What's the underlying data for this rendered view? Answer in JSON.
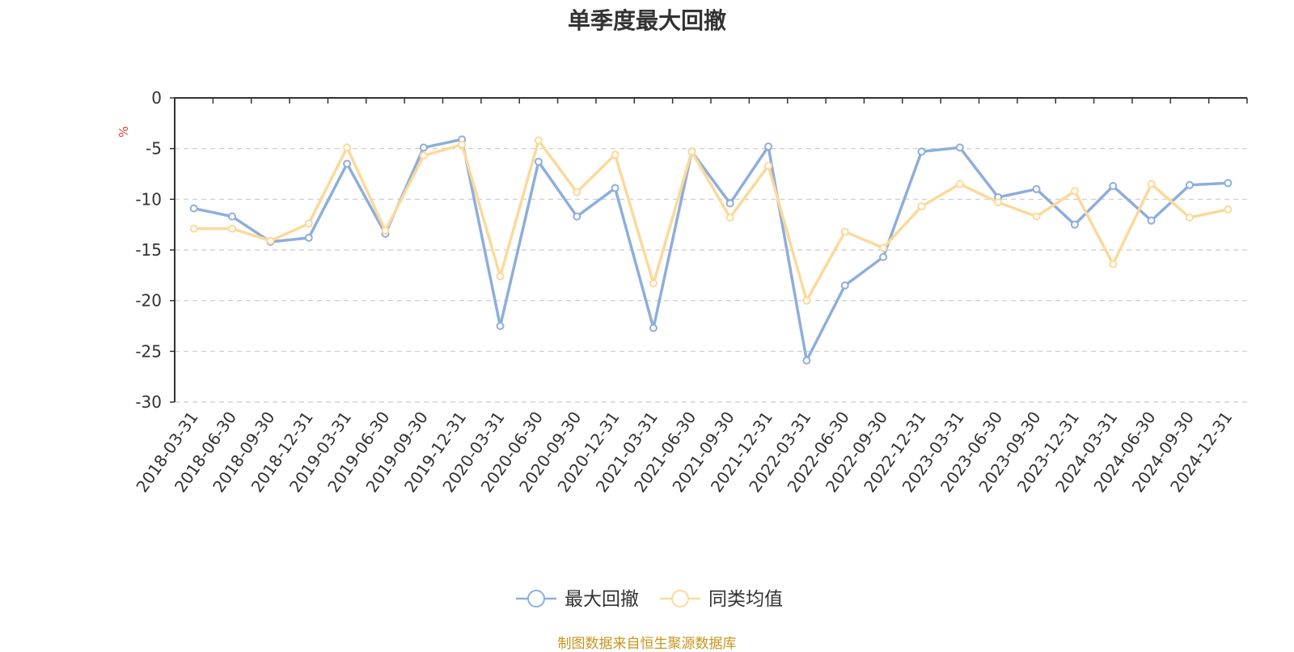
{
  "chart_data": {
    "type": "line",
    "title": "单季度最大回撤",
    "ylabel": "%",
    "ylim": [
      -30,
      0
    ],
    "yticks": [
      0,
      -5,
      -10,
      -15,
      -20,
      -25,
      -30
    ],
    "grid": true,
    "legend_position": "bottom-center",
    "categories": [
      "2018-03-31",
      "2018-06-30",
      "2018-09-30",
      "2018-12-31",
      "2019-03-31",
      "2019-06-30",
      "2019-09-30",
      "2019-12-31",
      "2020-03-31",
      "2020-06-30",
      "2020-09-30",
      "2020-12-31",
      "2021-03-31",
      "2021-06-30",
      "2021-09-30",
      "2021-12-31",
      "2022-03-31",
      "2022-06-30",
      "2022-09-30",
      "2022-12-31",
      "2023-03-31",
      "2023-06-30",
      "2023-09-30",
      "2023-12-31",
      "2024-03-31",
      "2024-06-30",
      "2024-09-30",
      "2024-12-31"
    ],
    "series": [
      {
        "name": "最大回撤",
        "color": "#8eaedb",
        "values": [
          -10.9,
          -11.7,
          -14.2,
          -13.8,
          -6.5,
          -13.4,
          -4.9,
          -4.1,
          -22.5,
          -6.3,
          -11.7,
          -8.9,
          -22.7,
          -5.3,
          -10.4,
          -4.8,
          -25.9,
          -18.5,
          -15.7,
          -5.3,
          -4.9,
          -9.8,
          -9.0,
          -12.5,
          -8.7,
          -12.1,
          -8.6,
          -8.4
        ]
      },
      {
        "name": "同类均值",
        "color": "#fcd99a",
        "values": [
          -12.9,
          -12.9,
          -14.1,
          -12.4,
          -4.9,
          -13.1,
          -5.7,
          -4.6,
          -17.6,
          -4.2,
          -9.3,
          -5.6,
          -18.3,
          -5.3,
          -11.8,
          -6.7,
          -20.0,
          -13.2,
          -14.8,
          -10.7,
          -8.5,
          -10.3,
          -11.7,
          -9.2,
          -16.4,
          -8.5,
          -11.8,
          -11.0
        ]
      }
    ]
  },
  "footer": {
    "source_text": "制图数据来自恒生聚源数据库"
  }
}
